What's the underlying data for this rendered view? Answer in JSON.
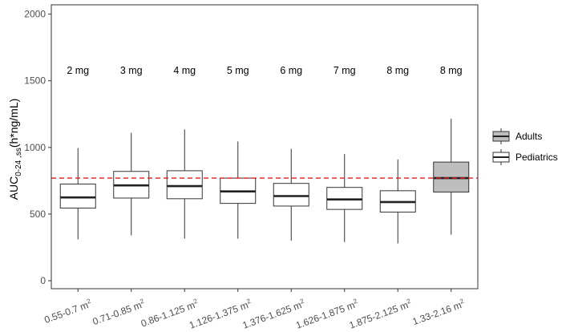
{
  "chart_data": {
    "type": "boxplot",
    "ylabel": {
      "main": "AUC",
      "subscript": "0-24 ,ss",
      "unit": "(h*ng/mL)"
    },
    "ylim": [
      -60,
      2070
    ],
    "yticks": [
      0,
      500,
      1000,
      1500,
      2000
    ],
    "categories": [
      {
        "label": "0.55-0.7 m",
        "sup": "2"
      },
      {
        "label": "0.71-0.85 m",
        "sup": "2"
      },
      {
        "label": "0.86-1.125 m",
        "sup": "2"
      },
      {
        "label": "1.126-1.375 m",
        "sup": "2"
      },
      {
        "label": "1.376-1.625 m",
        "sup": "2"
      },
      {
        "label": "1.626-1.875 m",
        "sup": "2"
      },
      {
        "label": "1.875-2.125 m",
        "sup": "2"
      },
      {
        "label": "1.33-2.16 m",
        "sup": "2"
      }
    ],
    "doses": [
      "2 mg",
      "3 mg",
      "4 mg",
      "5 mg",
      "6 mg",
      "7 mg",
      "8 mg",
      "8 mg"
    ],
    "boxes": [
      {
        "group": "Pediatrics",
        "min": 310,
        "q1": 545,
        "median": 625,
        "q3": 725,
        "max": 995
      },
      {
        "group": "Pediatrics",
        "min": 340,
        "q1": 620,
        "median": 715,
        "q3": 820,
        "max": 1110
      },
      {
        "group": "Pediatrics",
        "min": 315,
        "q1": 615,
        "median": 710,
        "q3": 825,
        "max": 1135
      },
      {
        "group": "Pediatrics",
        "min": 315,
        "q1": 580,
        "median": 670,
        "q3": 770,
        "max": 1045
      },
      {
        "group": "Pediatrics",
        "min": 300,
        "q1": 560,
        "median": 635,
        "q3": 730,
        "max": 990
      },
      {
        "group": "Pediatrics",
        "min": 290,
        "q1": 535,
        "median": 610,
        "q3": 700,
        "max": 950
      },
      {
        "group": "Pediatrics",
        "min": 280,
        "q1": 515,
        "median": 590,
        "q3": 675,
        "max": 910
      },
      {
        "group": "Adults",
        "min": 345,
        "q1": 665,
        "median": 770,
        "q3": 890,
        "max": 1215
      }
    ],
    "reference_line": 770,
    "legend": {
      "placement": "right",
      "entries": [
        {
          "label": "Adults",
          "fill": "#bebebe"
        },
        {
          "label": "Pediatrics",
          "fill": "#ffffff"
        }
      ]
    },
    "colors": {
      "reference": "#e41a1c",
      "box_stroke": "#333333",
      "axis_text": "#4d4d4d"
    },
    "grid": false
  }
}
